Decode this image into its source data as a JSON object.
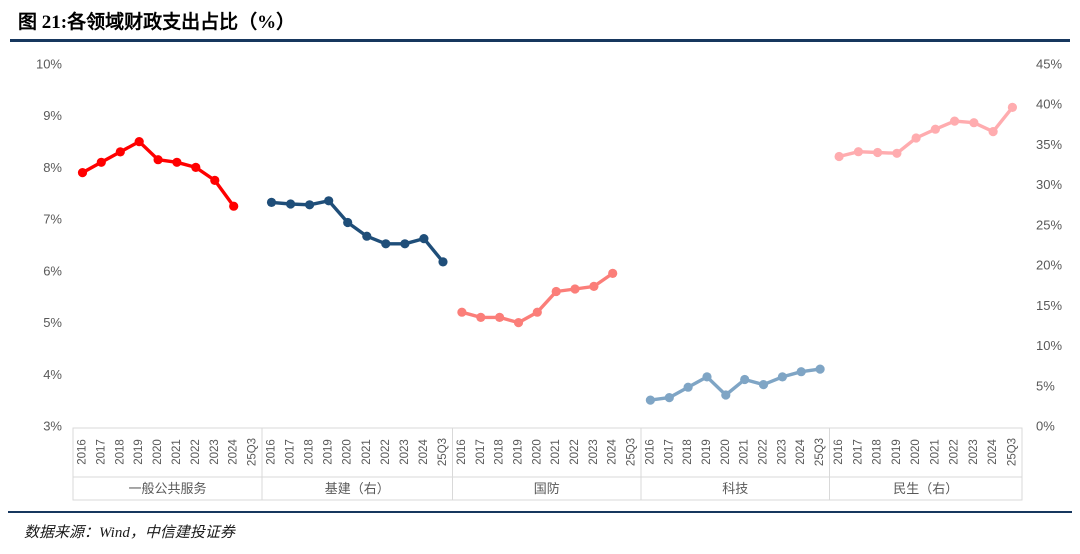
{
  "header": {
    "title": "图 21:各领域财政支出占比（%）"
  },
  "footer": {
    "source": "数据来源：Wind，中信建投证券"
  },
  "colors": {
    "title_rule": "#17375E",
    "footer_rule": "#17375E",
    "axis_text": "#595959",
    "axis_box": "#D9D9D9"
  },
  "chart_data": {
    "type": "line",
    "title": "各领域财政支出占比（%）",
    "grid": false,
    "legend": "none",
    "left_axis": {
      "min": 3,
      "max": 10,
      "ticks": [
        "10%",
        "9%",
        "8%",
        "7%",
        "6%",
        "5%",
        "4%",
        "3%"
      ]
    },
    "right_axis": {
      "min": 0,
      "max": 45,
      "ticks": [
        "45%",
        "40%",
        "35%",
        "30%",
        "25%",
        "20%",
        "15%",
        "10%",
        "5%",
        "0%"
      ]
    },
    "categories": [
      "2016",
      "2017",
      "2018",
      "2019",
      "2020",
      "2021",
      "2022",
      "2023",
      "2024",
      "25Q3"
    ],
    "groups": [
      {
        "label": "一般公共服务",
        "axis": "left",
        "color": "#FF0000",
        "values": [
          7.9,
          8.1,
          8.3,
          8.5,
          8.15,
          8.1,
          8.0,
          7.75,
          7.25,
          null
        ]
      },
      {
        "label": "基建（右）",
        "axis": "right",
        "color": "#1F4E79",
        "values": [
          27.8,
          27.6,
          27.5,
          28.0,
          25.3,
          23.6,
          22.65,
          22.65,
          23.3,
          20.4
        ]
      },
      {
        "label": "国防",
        "axis": "left",
        "color": "#FB7E79",
        "values": [
          5.2,
          5.1,
          5.1,
          5.0,
          5.2,
          5.6,
          5.65,
          5.7,
          5.95,
          null
        ]
      },
      {
        "label": "科技",
        "axis": "left",
        "color": "#7FA5C5",
        "values": [
          3.5,
          3.55,
          3.75,
          3.95,
          3.6,
          3.9,
          3.8,
          3.95,
          4.05,
          4.1
        ]
      },
      {
        "label": "民生（右）",
        "axis": "right",
        "color": "#FFACAF",
        "values": [
          33.5,
          34.1,
          34.0,
          33.9,
          35.8,
          36.9,
          37.9,
          37.7,
          36.6,
          39.6
        ]
      }
    ]
  }
}
